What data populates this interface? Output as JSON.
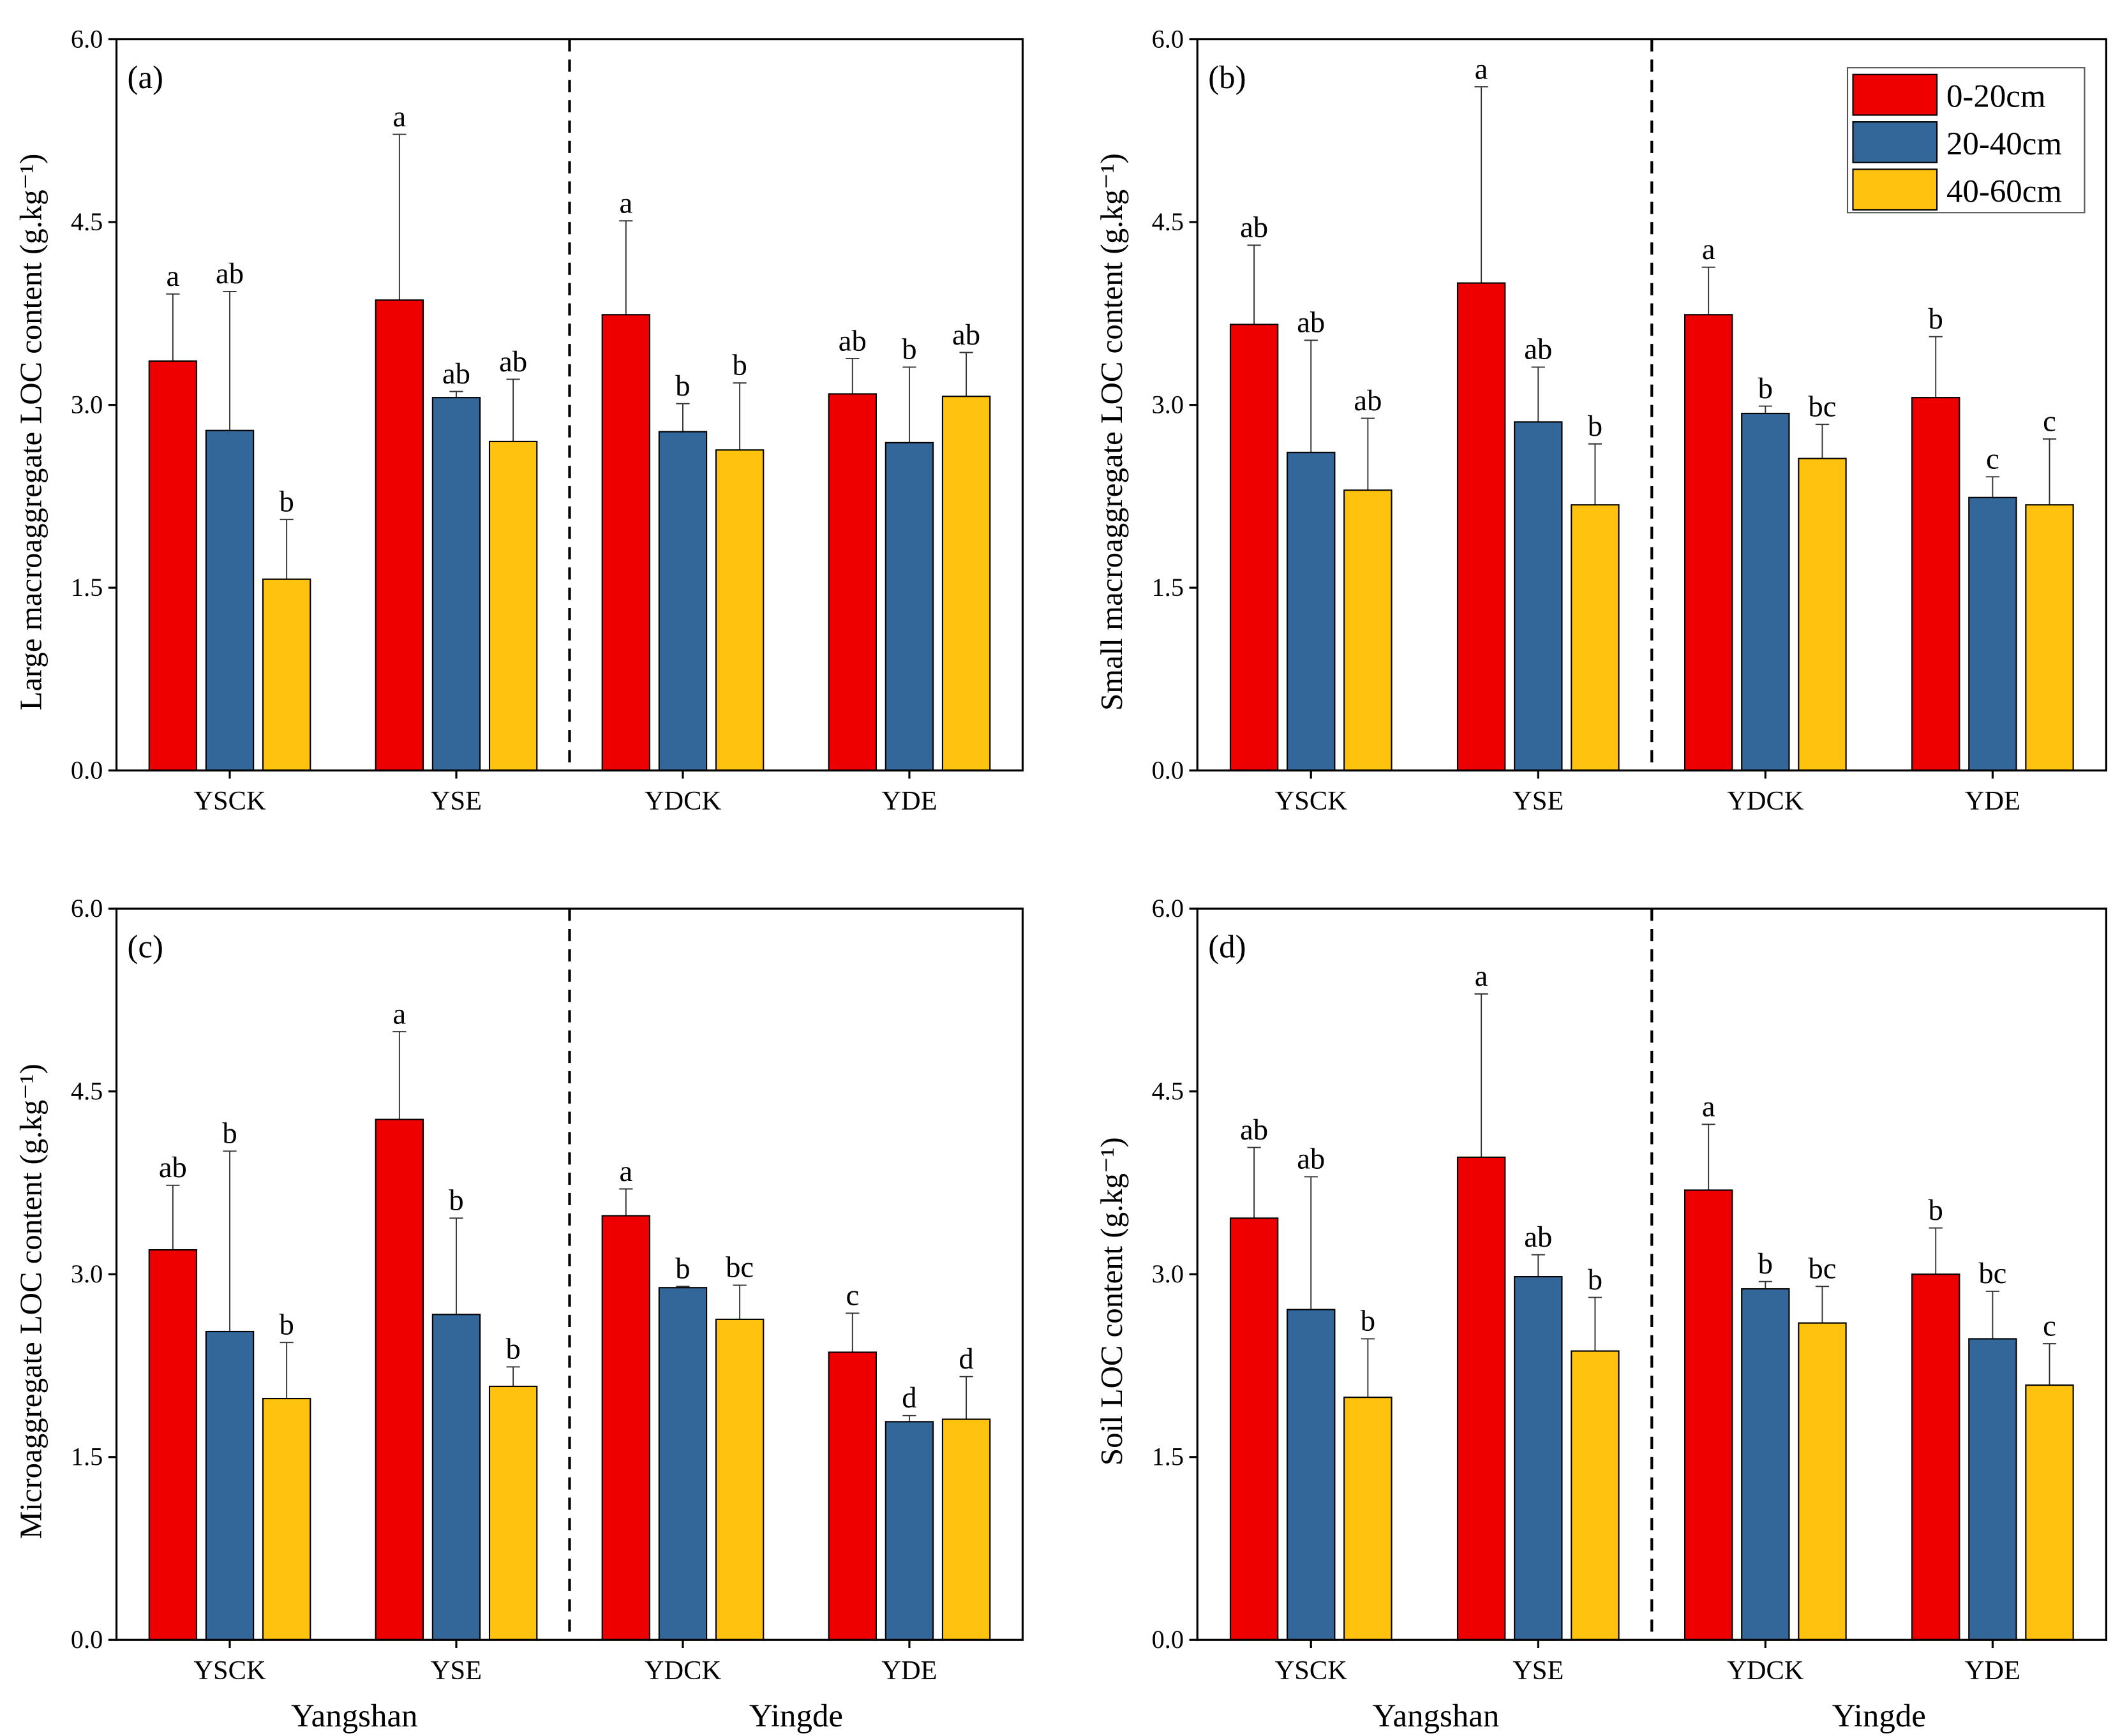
{
  "colors": {
    "0-20cm": "#ee0000",
    "20-40cm": "#336699",
    "40-60cm": "#ffc20e"
  },
  "chart_data": [
    {
      "type": "bar",
      "panel": "(a)",
      "ylabel": "Large macroaggregate LOC content (g.kg⁻¹)",
      "ylim": [
        0,
        6
      ],
      "yticks": [
        "0.0",
        "1.5",
        "3.0",
        "4.5",
        "6.0"
      ],
      "categories": [
        "YSCK",
        "YSE",
        "YDCK",
        "YDE"
      ],
      "sites": [
        "Yangshan",
        "Yingde"
      ],
      "series": [
        {
          "name": "0-20cm",
          "values": [
            3.36,
            3.86,
            3.74,
            3.09
          ],
          "errors": [
            0.55,
            1.36,
            0.77,
            0.29
          ],
          "letters": [
            "a",
            "a",
            "a",
            "ab"
          ]
        },
        {
          "name": "20-40cm",
          "values": [
            2.79,
            3.06,
            2.78,
            2.69
          ],
          "errors": [
            1.14,
            0.05,
            0.23,
            0.62
          ],
          "letters": [
            "ab",
            "ab",
            "b",
            "b"
          ]
        },
        {
          "name": "40-60cm",
          "values": [
            1.57,
            2.7,
            2.63,
            3.07
          ],
          "errors": [
            0.49,
            0.51,
            0.55,
            0.36
          ],
          "letters": [
            "b",
            "ab",
            "b",
            "ab"
          ]
        }
      ]
    },
    {
      "type": "bar",
      "panel": "(b)",
      "ylabel": "Small macroaggregate LOC content (g.kg⁻¹)",
      "ylim": [
        0,
        6
      ],
      "yticks": [
        "0.0",
        "1.5",
        "3.0",
        "4.5",
        "6.0"
      ],
      "categories": [
        "YSCK",
        "YSE",
        "YDCK",
        "YDE"
      ],
      "sites": [
        "Yangshan",
        "Yingde"
      ],
      "legend": [
        "0-20cm",
        "20-40cm",
        "40-60cm"
      ],
      "legend_position": "top-right",
      "series": [
        {
          "name": "0-20cm",
          "values": [
            3.66,
            4.0,
            3.74,
            3.06
          ],
          "errors": [
            0.65,
            1.61,
            0.39,
            0.5
          ],
          "letters": [
            "ab",
            "a",
            "a",
            "b"
          ]
        },
        {
          "name": "20-40cm",
          "values": [
            2.61,
            2.86,
            2.93,
            2.24
          ],
          "errors": [
            0.92,
            0.45,
            0.06,
            0.17
          ],
          "letters": [
            "ab",
            "ab",
            "b",
            "c"
          ]
        },
        {
          "name": "40-60cm",
          "values": [
            2.3,
            2.18,
            2.56,
            2.18
          ],
          "errors": [
            0.59,
            0.5,
            0.28,
            0.54
          ],
          "letters": [
            "ab",
            "b",
            "bc",
            "c"
          ]
        }
      ]
    },
    {
      "type": "bar",
      "panel": "(c)",
      "ylabel": "Microaggregate LOC content (g.kg⁻¹)",
      "ylim": [
        0,
        6
      ],
      "yticks": [
        "0.0",
        "1.5",
        "3.0",
        "4.5",
        "6.0"
      ],
      "categories": [
        "YSCK",
        "YSE",
        "YDCK",
        "YDE"
      ],
      "sites": [
        "Yangshan",
        "Yingde"
      ],
      "series": [
        {
          "name": "0-20cm",
          "values": [
            3.2,
            4.27,
            3.48,
            2.36
          ],
          "errors": [
            0.53,
            0.72,
            0.22,
            0.32
          ],
          "letters": [
            "ab",
            "a",
            "a",
            "c"
          ]
        },
        {
          "name": "20-40cm",
          "values": [
            2.53,
            2.67,
            2.89,
            1.79
          ],
          "errors": [
            1.48,
            0.79,
            0.01,
            0.05
          ],
          "letters": [
            "b",
            "b",
            "b",
            "d"
          ]
        },
        {
          "name": "40-60cm",
          "values": [
            1.98,
            2.08,
            2.63,
            1.81
          ],
          "errors": [
            0.46,
            0.16,
            0.28,
            0.35
          ],
          "letters": [
            "b",
            "b",
            "bc",
            "d"
          ]
        }
      ]
    },
    {
      "type": "bar",
      "panel": "(d)",
      "ylabel": "Soil LOC content (g.kg⁻¹)",
      "ylim": [
        0,
        6
      ],
      "yticks": [
        "0.0",
        "1.5",
        "3.0",
        "4.5",
        "6.0"
      ],
      "categories": [
        "YSCK",
        "YSE",
        "YDCK",
        "YDE"
      ],
      "sites": [
        "Yangshan",
        "Yingde"
      ],
      "series": [
        {
          "name": "0-20cm",
          "values": [
            3.46,
            3.96,
            3.69,
            3.0
          ],
          "errors": [
            0.58,
            1.34,
            0.54,
            0.38
          ],
          "letters": [
            "ab",
            "a",
            "a",
            "b"
          ]
        },
        {
          "name": "20-40cm",
          "values": [
            2.71,
            2.98,
            2.88,
            2.47
          ],
          "errors": [
            1.09,
            0.18,
            0.06,
            0.39
          ],
          "letters": [
            "ab",
            "ab",
            "b",
            "bc"
          ]
        },
        {
          "name": "40-60cm",
          "values": [
            1.99,
            2.37,
            2.6,
            2.09
          ],
          "errors": [
            0.48,
            0.44,
            0.3,
            0.34
          ],
          "letters": [
            "b",
            "b",
            "bc",
            "c"
          ]
        }
      ]
    }
  ]
}
